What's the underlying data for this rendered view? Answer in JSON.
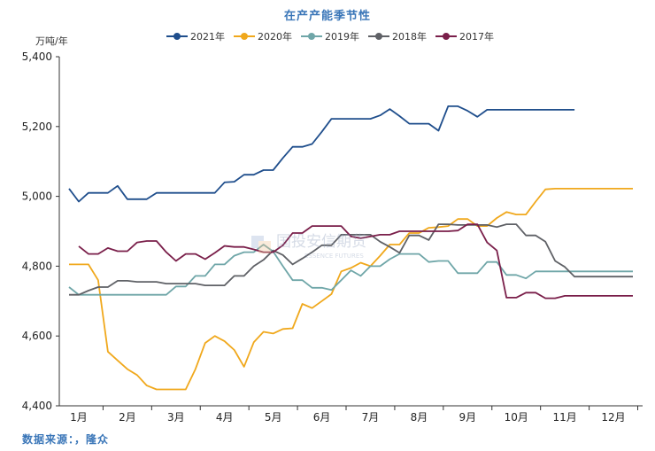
{
  "chart_data": {
    "type": "line",
    "title": "在产产能季节性",
    "ylabel": "万吨/年",
    "xlabel": "",
    "ylim": [
      4400,
      5400
    ],
    "yticks": [
      4400,
      4600,
      4800,
      5000,
      5200,
      5400
    ],
    "ytick_labels": [
      "4,400",
      "4,600",
      "4,800",
      "5,000",
      "5,200",
      "5,400"
    ],
    "xlim": [
      0.6,
      12.6
    ],
    "categories": [
      "1月",
      "2月",
      "3月",
      "4月",
      "5月",
      "6月",
      "7月",
      "8月",
      "9月",
      "10月",
      "11月",
      "12月"
    ],
    "grid": false,
    "legend_position": "top",
    "series": [
      {
        "name": "2021年",
        "color": "#1f4e8c",
        "x": [
          0.8,
          1.0,
          1.2,
          1.4,
          1.6,
          1.8,
          2.0,
          2.2,
          2.4,
          2.6,
          2.8,
          3.0,
          3.2,
          3.4,
          3.6,
          3.8,
          4.0,
          4.2,
          4.4,
          4.6,
          4.8,
          5.0,
          5.2,
          5.4,
          5.6,
          5.8,
          6.0,
          6.2,
          6.4,
          6.6,
          6.8,
          7.0,
          7.2,
          7.4,
          7.6,
          7.8,
          8.0,
          8.2,
          8.4,
          8.6,
          8.8,
          9.0,
          9.2,
          9.4,
          9.6,
          9.8,
          10.0,
          10.2,
          10.4,
          10.6,
          10.8,
          11.0,
          11.2
        ],
        "y": [
          5022,
          4985,
          5010,
          5010,
          5010,
          5030,
          4992,
          4992,
          4992,
          5010,
          5010,
          5010,
          5010,
          5010,
          5010,
          5010,
          5040,
          5042,
          5062,
          5062,
          5075,
          5075,
          5110,
          5142,
          5142,
          5150,
          5185,
          5222,
          5222,
          5222,
          5222,
          5222,
          5232,
          5250,
          5230,
          5208,
          5208,
          5208,
          5188,
          5258,
          5258,
          5245,
          5228,
          5248,
          5248,
          5248,
          5248,
          5248,
          5248,
          5248,
          5248,
          5248,
          5248
        ]
      },
      {
        "name": "2020年",
        "color": "#f0a81c",
        "x": [
          0.8,
          1.0,
          1.2,
          1.4,
          1.6,
          1.8,
          2.0,
          2.2,
          2.4,
          2.6,
          2.8,
          3.0,
          3.2,
          3.4,
          3.6,
          3.8,
          4.0,
          4.2,
          4.4,
          4.6,
          4.8,
          5.0,
          5.2,
          5.4,
          5.6,
          5.8,
          6.0,
          6.2,
          6.4,
          6.6,
          6.8,
          7.0,
          7.2,
          7.4,
          7.6,
          7.8,
          8.0,
          8.2,
          8.4,
          8.6,
          8.8,
          9.0,
          9.2,
          9.4,
          9.6,
          9.8,
          10.0,
          10.2,
          10.4,
          10.6,
          10.8,
          11.0,
          11.2,
          11.4,
          11.6,
          11.8,
          12.0,
          12.2,
          12.4
        ],
        "y": [
          4805,
          4805,
          4805,
          4760,
          4555,
          4530,
          4505,
          4488,
          4458,
          4447,
          4447,
          4447,
          4447,
          4505,
          4580,
          4600,
          4585,
          4560,
          4512,
          4582,
          4612,
          4607,
          4620,
          4622,
          4692,
          4680,
          4700,
          4720,
          4785,
          4795,
          4810,
          4800,
          4830,
          4862,
          4862,
          4895,
          4895,
          4910,
          4912,
          4915,
          4935,
          4935,
          4915,
          4915,
          4938,
          4955,
          4948,
          4948,
          4985,
          5020,
          5022,
          5022,
          5022,
          5022,
          5022,
          5022,
          5022,
          5022,
          5022
        ]
      },
      {
        "name": "2019年",
        "color": "#6fa6a8",
        "x": [
          0.8,
          1.0,
          1.2,
          1.4,
          1.6,
          1.8,
          2.0,
          2.2,
          2.4,
          2.6,
          2.8,
          3.0,
          3.2,
          3.4,
          3.6,
          3.8,
          4.0,
          4.2,
          4.4,
          4.6,
          4.8,
          5.0,
          5.2,
          5.4,
          5.6,
          5.8,
          6.0,
          6.2,
          6.4,
          6.6,
          6.8,
          7.0,
          7.2,
          7.4,
          7.6,
          7.8,
          8.0,
          8.2,
          8.4,
          8.6,
          8.8,
          9.0,
          9.2,
          9.4,
          9.6,
          9.8,
          10.0,
          10.2,
          10.4,
          10.6,
          10.8,
          11.0,
          11.2,
          11.4,
          11.6,
          11.8,
          12.0,
          12.2,
          12.4
        ],
        "y": [
          4740,
          4718,
          4718,
          4718,
          4718,
          4718,
          4718,
          4718,
          4718,
          4718,
          4718,
          4742,
          4742,
          4772,
          4772,
          4805,
          4805,
          4830,
          4840,
          4840,
          4862,
          4842,
          4800,
          4760,
          4760,
          4738,
          4738,
          4732,
          4760,
          4788,
          4772,
          4800,
          4800,
          4820,
          4835,
          4835,
          4835,
          4812,
          4815,
          4815,
          4780,
          4780,
          4780,
          4812,
          4812,
          4775,
          4775,
          4765,
          4785,
          4785,
          4785,
          4785,
          4785,
          4785,
          4785,
          4785,
          4785,
          4785,
          4785
        ]
      },
      {
        "name": "2018年",
        "color": "#5f6166",
        "x": [
          0.8,
          1.0,
          1.2,
          1.4,
          1.6,
          1.8,
          2.0,
          2.2,
          2.4,
          2.6,
          2.8,
          3.0,
          3.2,
          3.4,
          3.6,
          3.8,
          4.0,
          4.2,
          4.4,
          4.6,
          4.8,
          5.0,
          5.2,
          5.4,
          5.6,
          5.8,
          6.0,
          6.2,
          6.4,
          6.6,
          6.8,
          7.0,
          7.2,
          7.4,
          7.6,
          7.8,
          8.0,
          8.2,
          8.4,
          8.6,
          8.8,
          9.0,
          9.2,
          9.4,
          9.6,
          9.8,
          10.0,
          10.2,
          10.4,
          10.6,
          10.8,
          11.0,
          11.2,
          11.4,
          11.6,
          11.8,
          12.0,
          12.2,
          12.4
        ],
        "y": [
          4718,
          4718,
          4730,
          4740,
          4740,
          4758,
          4758,
          4755,
          4755,
          4755,
          4750,
          4750,
          4750,
          4750,
          4745,
          4745,
          4745,
          4772,
          4772,
          4800,
          4818,
          4845,
          4832,
          4805,
          4822,
          4840,
          4860,
          4860,
          4890,
          4890,
          4890,
          4890,
          4870,
          4855,
          4838,
          4888,
          4888,
          4875,
          4920,
          4920,
          4918,
          4918,
          4918,
          4918,
          4912,
          4920,
          4920,
          4888,
          4888,
          4870,
          4815,
          4798,
          4770,
          4770,
          4770,
          4770,
          4770,
          4770,
          4770
        ]
      },
      {
        "name": "2017年",
        "color": "#7a1f4a",
        "x": [
          1.0,
          1.2,
          1.4,
          1.6,
          1.8,
          2.0,
          2.2,
          2.4,
          2.6,
          2.8,
          3.0,
          3.2,
          3.4,
          3.6,
          3.8,
          4.0,
          4.2,
          4.4,
          4.6,
          4.8,
          5.0,
          5.2,
          5.4,
          5.6,
          5.8,
          6.0,
          6.2,
          6.4,
          6.6,
          6.8,
          7.0,
          7.2,
          7.4,
          7.6,
          7.8,
          8.0,
          8.2,
          8.4,
          8.6,
          8.8,
          9.0,
          9.2,
          9.4,
          9.6,
          9.8,
          10.0,
          10.2,
          10.4,
          10.6,
          10.8,
          11.0,
          11.2,
          11.4,
          11.6,
          11.8,
          12.0,
          12.2,
          12.4
        ],
        "y": [
          4857,
          4835,
          4835,
          4852,
          4843,
          4843,
          4868,
          4872,
          4872,
          4840,
          4815,
          4835,
          4835,
          4820,
          4838,
          4858,
          4855,
          4855,
          4848,
          4840,
          4840,
          4860,
          4895,
          4895,
          4915,
          4915,
          4915,
          4915,
          4885,
          4880,
          4885,
          4890,
          4890,
          4900,
          4900,
          4900,
          4900,
          4900,
          4900,
          4902,
          4920,
          4920,
          4868,
          4845,
          4710,
          4710,
          4724,
          4724,
          4708,
          4708,
          4715,
          4715,
          4715,
          4715,
          4715,
          4715,
          4715,
          4715
        ]
      }
    ]
  },
  "source_note": "数据来源：，隆众",
  "watermark": {
    "main": "国投安信期货",
    "sub": "ESSENCE FUTURES"
  }
}
